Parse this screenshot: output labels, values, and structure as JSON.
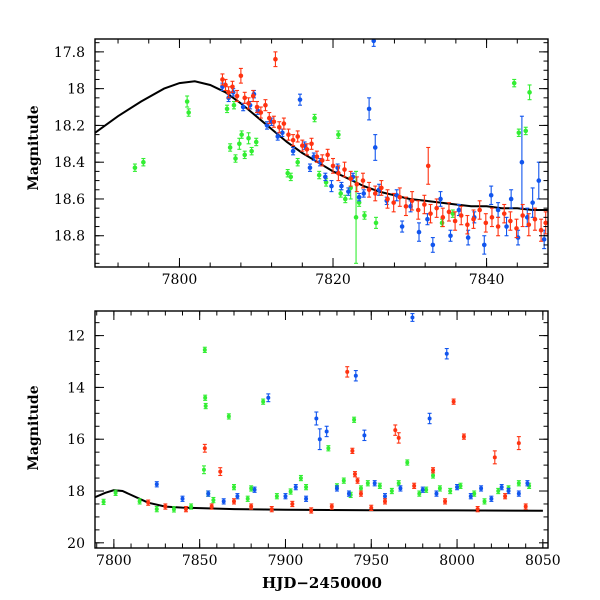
{
  "colors": {
    "green": "#33ee33",
    "blue": "#1155ee",
    "red": "#ff3311",
    "model": "#000000"
  },
  "chart_data": [
    {
      "type": "scatter",
      "ylabel": "Magnitude",
      "xlabel": "",
      "xlim": [
        7789,
        7848
      ],
      "ylim": [
        18.97,
        17.73
      ],
      "inverted_y": true,
      "xticks": [
        7800,
        7820,
        7840
      ],
      "xtick_labels": [
        "7800",
        "7820",
        "7840"
      ],
      "yticks": [
        17.8,
        18,
        18.2,
        18.4,
        18.6,
        18.8
      ],
      "ytick_labels": [
        "17.8",
        "18",
        "18.2",
        "18.4",
        "18.6",
        "18.8"
      ],
      "model_curve": {
        "x": [
          7789,
          7792,
          7795,
          7798,
          7800,
          7802,
          7804,
          7806,
          7808,
          7810,
          7812,
          7814,
          7816,
          7818,
          7820,
          7822,
          7824,
          7826,
          7828,
          7830,
          7832,
          7834,
          7836,
          7838,
          7840,
          7842,
          7844,
          7846,
          7848
        ],
        "y": [
          18.24,
          18.15,
          18.07,
          18.0,
          17.97,
          17.96,
          17.98,
          18.02,
          18.08,
          18.15,
          18.22,
          18.29,
          18.35,
          18.4,
          18.45,
          18.49,
          18.53,
          18.56,
          18.58,
          18.6,
          18.61,
          18.62,
          18.63,
          18.64,
          18.64,
          18.65,
          18.65,
          18.66,
          18.66
        ]
      },
      "series": [
        {
          "color": "green",
          "x": [
            7794.2,
            7795.3,
            7801.0,
            7801.2,
            7806.2,
            7806.6,
            7807.1,
            7807.3,
            7807.8,
            7808.1,
            7808.5,
            7809.0,
            7809.4,
            7810.0,
            7814.1,
            7814.5,
            7815.4,
            7817.6,
            7818.2,
            7819.1,
            7820.7,
            7821.0,
            7821.6,
            7822.3,
            7823.0,
            7823.4,
            7824.1,
            7825.6,
            7834.2,
            7835.6,
            7843.6,
            7844.2,
            7845.1,
            7845.6
          ],
          "y": [
            18.43,
            18.4,
            18.07,
            18.13,
            18.11,
            18.32,
            18.09,
            18.38,
            18.3,
            18.25,
            18.36,
            18.27,
            18.34,
            18.29,
            18.46,
            18.48,
            18.4,
            18.16,
            18.47,
            18.51,
            18.25,
            18.57,
            18.6,
            18.54,
            18.7,
            18.62,
            18.69,
            18.73,
            18.73,
            18.68,
            17.97,
            18.24,
            18.23,
            18.02
          ],
          "err": [
            0.02,
            0.02,
            0.03,
            0.02,
            0.02,
            0.02,
            0.02,
            0.02,
            0.03,
            0.02,
            0.02,
            0.03,
            0.02,
            0.02,
            0.02,
            0.02,
            0.02,
            0.02,
            0.02,
            0.02,
            0.02,
            0.02,
            0.02,
            0.06,
            0.25,
            0.02,
            0.02,
            0.03,
            0.02,
            0.02,
            0.02,
            0.02,
            0.02,
            0.04
          ]
        },
        {
          "color": "blue",
          "x": [
            7805.6,
            7806.4,
            7807.0,
            7808.3,
            7809.2,
            7809.7,
            7810.2,
            7811.4,
            7812.0,
            7812.8,
            7813.4,
            7814.8,
            7815.7,
            7816.3,
            7817.0,
            7817.5,
            7818.3,
            7819.0,
            7819.8,
            7820.6,
            7821.1,
            7822.0,
            7822.6,
            7823.4,
            7824.0,
            7824.7,
            7825.3,
            7825.5,
            7826.0,
            7827.0,
            7828.3,
            7829.0,
            7830.1,
            7831.2,
            7832.3,
            7833.0,
            7834.0,
            7835.3,
            7836.4,
            7837.6,
            7838.4,
            7839.7,
            7840.6,
            7841.5,
            7842.6,
            7843.2,
            7844.1,
            7844.6,
            7845.3,
            7846.0,
            7846.8,
            7847.5
          ],
          "y": [
            17.99,
            18.05,
            18.02,
            18.1,
            18.09,
            18.03,
            18.12,
            18.2,
            18.18,
            18.26,
            18.24,
            18.34,
            18.06,
            18.31,
            18.43,
            18.37,
            18.4,
            18.48,
            18.53,
            18.43,
            18.53,
            18.56,
            18.48,
            18.59,
            18.57,
            18.11,
            17.74,
            18.32,
            18.55,
            18.61,
            18.58,
            18.75,
            18.64,
            18.78,
            18.71,
            18.85,
            18.6,
            18.8,
            18.66,
            18.81,
            18.7,
            18.85,
            18.58,
            18.66,
            18.75,
            18.6,
            18.81,
            18.4,
            18.7,
            18.62,
            18.5,
            18.82
          ],
          "err": [
            0.02,
            0.02,
            0.02,
            0.02,
            0.02,
            0.02,
            0.02,
            0.02,
            0.02,
            0.02,
            0.02,
            0.02,
            0.03,
            0.02,
            0.02,
            0.02,
            0.02,
            0.02,
            0.03,
            0.02,
            0.02,
            0.02,
            0.02,
            0.02,
            0.02,
            0.06,
            0.03,
            0.07,
            0.03,
            0.02,
            0.03,
            0.03,
            0.03,
            0.05,
            0.03,
            0.04,
            0.04,
            0.03,
            0.03,
            0.04,
            0.03,
            0.05,
            0.05,
            0.04,
            0.05,
            0.05,
            0.04,
            0.25,
            0.05,
            0.08,
            0.1,
            0.05
          ]
        },
        {
          "color": "red",
          "x": [
            7805.6,
            7806.0,
            7806.4,
            7806.9,
            7807.5,
            7808.0,
            7808.5,
            7809.0,
            7809.6,
            7810.1,
            7810.6,
            7811.2,
            7811.7,
            7812.3,
            7812.5,
            7813.0,
            7813.6,
            7814.2,
            7814.8,
            7815.4,
            7816.0,
            7816.6,
            7817.2,
            7817.9,
            7818.6,
            7819.3,
            7820.0,
            7820.7,
            7821.5,
            7822.3,
            7823.1,
            7823.9,
            7824.7,
            7825.5,
            7826.3,
            7827.1,
            7827.9,
            7828.7,
            7829.5,
            7830.3,
            7831.1,
            7831.9,
            7832.4,
            7832.7,
            7833.5,
            7834.3,
            7835.1,
            7835.9,
            7836.7,
            7837.5,
            7838.3,
            7839.1,
            7839.9,
            7840.7,
            7841.5,
            7842.3,
            7843.1,
            7843.9,
            7844.7,
            7845.5,
            7846.3,
            7847.1,
            7847.7
          ],
          "y": [
            17.95,
            17.98,
            18.02,
            17.99,
            18.04,
            17.93,
            18.05,
            18.08,
            18.04,
            18.1,
            18.13,
            18.09,
            18.16,
            18.18,
            17.84,
            18.21,
            18.19,
            18.25,
            18.28,
            18.26,
            18.31,
            18.33,
            18.3,
            18.37,
            18.39,
            18.36,
            18.42,
            18.46,
            18.44,
            18.49,
            18.52,
            18.5,
            18.55,
            18.57,
            18.54,
            18.6,
            18.62,
            18.59,
            18.64,
            18.61,
            18.66,
            18.63,
            18.42,
            18.68,
            18.65,
            18.7,
            18.67,
            18.72,
            18.69,
            18.74,
            18.71,
            18.66,
            18.73,
            18.7,
            18.75,
            18.68,
            18.72,
            18.76,
            18.69,
            18.74,
            18.71,
            18.77,
            18.73
          ],
          "err": [
            0.03,
            0.03,
            0.03,
            0.03,
            0.03,
            0.04,
            0.03,
            0.03,
            0.03,
            0.03,
            0.03,
            0.03,
            0.03,
            0.03,
            0.04,
            0.03,
            0.03,
            0.03,
            0.03,
            0.03,
            0.03,
            0.03,
            0.03,
            0.03,
            0.03,
            0.03,
            0.04,
            0.04,
            0.04,
            0.04,
            0.04,
            0.04,
            0.04,
            0.04,
            0.04,
            0.05,
            0.05,
            0.05,
            0.05,
            0.05,
            0.05,
            0.05,
            0.1,
            0.05,
            0.05,
            0.05,
            0.05,
            0.05,
            0.05,
            0.05,
            0.05,
            0.05,
            0.05,
            0.05,
            0.05,
            0.05,
            0.05,
            0.05,
            0.06,
            0.06,
            0.06,
            0.06,
            0.06
          ]
        }
      ]
    },
    {
      "type": "scatter",
      "ylabel": "Magnitude",
      "xlabel": "HJD−2450000",
      "xlim": [
        7789,
        8053
      ],
      "ylim": [
        20.2,
        11.05
      ],
      "inverted_y": true,
      "xticks": [
        7800,
        7850,
        7900,
        7950,
        8000,
        8050
      ],
      "xtick_labels": [
        "7800",
        "7850",
        "7900",
        "7950",
        "8000",
        "8050"
      ],
      "yticks": [
        12,
        14,
        16,
        18,
        20
      ],
      "ytick_labels": [
        "12",
        "14",
        "16",
        "18",
        "20"
      ],
      "model_curve": {
        "x": [
          7789,
          7795,
          7800,
          7805,
          7810,
          7815,
          7820,
          7830,
          7840,
          7850,
          7870,
          7900,
          7950,
          8000,
          8050
        ],
        "y": [
          18.24,
          18.07,
          17.97,
          18.0,
          18.15,
          18.3,
          18.45,
          18.6,
          18.64,
          18.66,
          18.7,
          18.72,
          18.74,
          18.75,
          18.76
        ]
      },
      "series": [
        {
          "color": "green",
          "x": [
            7794,
            7801,
            7815,
            7825,
            7835,
            7845,
            7852.5,
            7853,
            7853.2,
            7853.5,
            7855,
            7858,
            7867,
            7870,
            7878,
            7880,
            7887,
            7895,
            7903,
            7909,
            7912,
            7925,
            7930,
            7934,
            7938,
            7940,
            7944,
            7948,
            7955,
            7962,
            7966,
            7971,
            7978,
            7982,
            7986,
            7990,
            7996,
            8002,
            8010,
            8016,
            8024,
            8030,
            8036,
            8042
          ],
          "y": [
            18.42,
            18.07,
            18.4,
            18.7,
            18.71,
            18.6,
            17.18,
            12.55,
            14.4,
            14.72,
            18.1,
            18.35,
            15.12,
            17.85,
            18.3,
            17.9,
            14.55,
            18.2,
            18.02,
            17.5,
            17.85,
            16.35,
            17.82,
            17.6,
            18.15,
            15.25,
            17.9,
            17.7,
            17.8,
            18.0,
            17.7,
            16.9,
            18.1,
            17.95,
            17.4,
            17.9,
            18.0,
            17.8,
            18.1,
            18.4,
            18.0,
            17.9,
            17.7,
            17.8
          ],
          "err": [
            0.1,
            0.1,
            0.1,
            0.1,
            0.1,
            0.1,
            0.15,
            0.1,
            0.1,
            0.1,
            0.1,
            0.1,
            0.1,
            0.1,
            0.1,
            0.1,
            0.1,
            0.1,
            0.1,
            0.1,
            0.1,
            0.1,
            0.1,
            0.1,
            0.1,
            0.1,
            0.1,
            0.1,
            0.1,
            0.1,
            0.1,
            0.1,
            0.1,
            0.1,
            0.1,
            0.1,
            0.1,
            0.1,
            0.1,
            0.1,
            0.1,
            0.1,
            0.1,
            0.1
          ]
        },
        {
          "color": "blue",
          "x": [
            7825,
            7840,
            7855,
            7864,
            7872,
            7882,
            7890,
            7900,
            7906,
            7912,
            7918,
            7920,
            7924,
            7930,
            7937,
            7941,
            7946,
            7952,
            7958,
            7967,
            7974,
            7980,
            7984,
            7988,
            7994,
            8000,
            8008,
            8014,
            8020,
            8026,
            8030,
            8036,
            8041
          ],
          "y": [
            17.74,
            18.3,
            18.1,
            18.4,
            18.2,
            17.95,
            14.4,
            18.2,
            17.85,
            18.3,
            15.2,
            16.0,
            15.7,
            17.9,
            18.1,
            13.55,
            15.85,
            17.7,
            18.2,
            17.9,
            11.3,
            17.95,
            15.2,
            18.1,
            12.7,
            17.85,
            18.2,
            17.9,
            18.3,
            17.85,
            18.0,
            18.1,
            17.7
          ],
          "err": [
            0.1,
            0.1,
            0.1,
            0.1,
            0.1,
            0.1,
            0.15,
            0.1,
            0.1,
            0.1,
            0.25,
            0.4,
            0.2,
            0.1,
            0.1,
            0.2,
            0.2,
            0.1,
            0.1,
            0.1,
            0.15,
            0.1,
            0.2,
            0.1,
            0.2,
            0.1,
            0.1,
            0.1,
            0.1,
            0.1,
            0.1,
            0.1,
            0.1
          ]
        },
        {
          "color": "red",
          "x": [
            7820,
            7830,
            7842,
            7853,
            7857,
            7862,
            7870,
            7880,
            7892,
            7904,
            7915,
            7927,
            7936,
            7939,
            7940.5,
            7942,
            7944,
            7950,
            7958,
            7964,
            7966,
            7975,
            7986,
            7993,
            7998,
            8004,
            8012,
            8022,
            8028,
            8036,
            8040
          ],
          "y": [
            18.45,
            18.6,
            18.7,
            16.35,
            18.6,
            17.25,
            18.4,
            18.6,
            18.7,
            18.5,
            18.75,
            18.6,
            13.4,
            16.45,
            17.35,
            17.6,
            18.1,
            18.65,
            18.4,
            15.65,
            15.95,
            17.8,
            17.2,
            18.4,
            14.55,
            15.9,
            18.7,
            16.7,
            18.2,
            16.15,
            18.6
          ],
          "err": [
            0.1,
            0.1,
            0.1,
            0.15,
            0.1,
            0.15,
            0.1,
            0.1,
            0.1,
            0.1,
            0.1,
            0.1,
            0.2,
            0.1,
            0.1,
            0.1,
            0.1,
            0.1,
            0.1,
            0.2,
            0.2,
            0.1,
            0.1,
            0.1,
            0.1,
            0.1,
            0.1,
            0.25,
            0.1,
            0.25,
            0.1
          ]
        }
      ]
    }
  ]
}
